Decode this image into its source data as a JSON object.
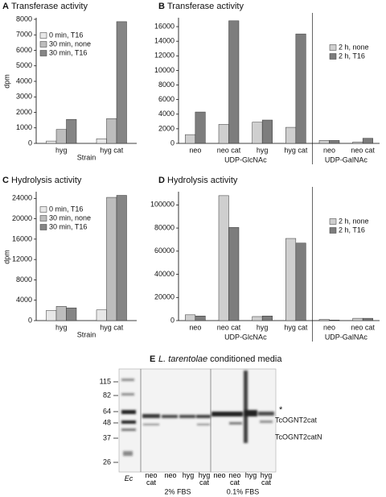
{
  "chart_data": [
    {
      "type": "bar",
      "panel": "A",
      "title": "Transferase activity",
      "ylabel": "dpm",
      "xlabel": "Strain",
      "categories": [
        "hyg",
        "hyg cat"
      ],
      "series": [
        {
          "name": "0 min, T16",
          "color": "#e8e8e8",
          "values": [
            150,
            300
          ]
        },
        {
          "name": "30 min, none",
          "color": "#bdbdbd",
          "values": [
            900,
            1600
          ]
        },
        {
          "name": "30 min, T16",
          "color": "#858585",
          "values": [
            1550,
            7850
          ]
        }
      ],
      "ylim": [
        0,
        8000
      ],
      "yticks": [
        0,
        1000,
        2000,
        3000,
        4000,
        5000,
        6000,
        7000,
        8000
      ],
      "legend": "upper left"
    },
    {
      "type": "bar",
      "panel": "B",
      "title": "Transferase activity",
      "groups": [
        {
          "name": "UDP-GlcNAc",
          "categories": [
            "neo",
            "neo cat",
            "hyg",
            "hyg cat"
          ]
        },
        {
          "name": "UDP-GalNAc",
          "categories": [
            "neo",
            "neo cat"
          ]
        }
      ],
      "series": [
        {
          "name": "2 h, none",
          "color": "#cfcfcf",
          "values": [
            1200,
            2600,
            2900,
            2200,
            400,
            200
          ]
        },
        {
          "name": "2 h, T16",
          "color": "#7d7d7d",
          "values": [
            4300,
            16800,
            3200,
            15000,
            400,
            700
          ]
        }
      ],
      "ylim": [
        0,
        17000
      ],
      "yticks": [
        0,
        2000,
        4000,
        6000,
        8000,
        10000,
        12000,
        14000,
        16000
      ],
      "legend": "upper right"
    },
    {
      "type": "bar",
      "panel": "C",
      "title": "Hydrolysis activity",
      "ylabel": "dpm",
      "xlabel": "Strain",
      "categories": [
        "hyg",
        "hyg cat"
      ],
      "series": [
        {
          "name": "0 min, T16",
          "color": "#e8e8e8",
          "values": [
            2000,
            2100
          ]
        },
        {
          "name": "30 min, none",
          "color": "#bdbdbd",
          "values": [
            2800,
            24200
          ]
        },
        {
          "name": "30 min, T16",
          "color": "#858585",
          "values": [
            2500,
            24600
          ]
        }
      ],
      "ylim": [
        0,
        25000
      ],
      "yticks": [
        0,
        4000,
        8000,
        12000,
        16000,
        20000,
        24000
      ],
      "legend": "upper left"
    },
    {
      "type": "bar",
      "panel": "D",
      "title": "Hydrolysis activity",
      "groups": [
        {
          "name": "UDP-GlcNAc",
          "categories": [
            "neo",
            "neo cat",
            "hyg",
            "hyg cat"
          ]
        },
        {
          "name": "UDP-GalNAc",
          "categories": [
            "neo",
            "neo cat"
          ]
        }
      ],
      "series": [
        {
          "name": "2 h, none",
          "color": "#cfcfcf",
          "values": [
            5000,
            108000,
            3500,
            71000,
            1000,
            2000
          ]
        },
        {
          "name": "2 h, T16",
          "color": "#7d7d7d",
          "values": [
            4000,
            80500,
            4000,
            67000,
            500,
            2000
          ]
        }
      ],
      "ylim": [
        0,
        110000
      ],
      "yticks": [
        0,
        20000,
        40000,
        60000,
        80000,
        100000
      ],
      "legend": "upper right"
    }
  ],
  "blot": {
    "panel": "E",
    "organism": "L. tarentolae",
    "title": "conditioned media",
    "markers": [
      115,
      82,
      64,
      48,
      37,
      26
    ],
    "lanes": [
      "Ec",
      "neo cat",
      "neo",
      "hyg",
      "hyg cat",
      "neo",
      "neo cat",
      "hyg",
      "hyg cat"
    ],
    "groups": [
      "2% FBS",
      "0.1% FBS"
    ],
    "annotations": [
      "*",
      "TcOGNT2cat",
      "TcOGNT2catN"
    ]
  }
}
